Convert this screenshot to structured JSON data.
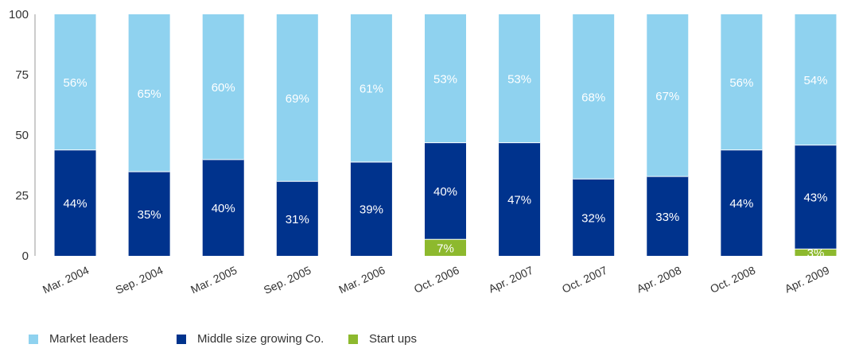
{
  "chart_data": {
    "type": "bar",
    "stacked": true,
    "categories": [
      "Mar. 2004",
      "Sep. 2004",
      "Mar. 2005",
      "Sep. 2005",
      "Mar. 2006",
      "Oct. 2006",
      "Apr. 2007",
      "Oct. 2007",
      "Apr. 2008",
      "Oct. 2008",
      "Apr. 2009"
    ],
    "series": [
      {
        "name": "Start ups",
        "color": "#8db92e",
        "values": [
          0,
          0,
          0,
          0,
          0,
          7,
          0,
          0,
          0,
          0,
          3
        ],
        "labels": [
          "",
          "",
          "",
          "",
          "",
          "7%",
          "",
          "",
          "",
          "",
          "3%"
        ]
      },
      {
        "name": "Middle size growing Co.",
        "color": "#00338d",
        "values": [
          44,
          35,
          40,
          31,
          39,
          40,
          47,
          32,
          33,
          44,
          43
        ],
        "labels": [
          "44%",
          "35%",
          "40%",
          "31%",
          "39%",
          "40%",
          "47%",
          "32%",
          "33%",
          "44%",
          "43%"
        ]
      },
      {
        "name": "Market leaders",
        "color": "#8fd2ef",
        "values": [
          56,
          65,
          60,
          69,
          61,
          53,
          53,
          68,
          67,
          56,
          54
        ],
        "labels": [
          "56%",
          "65%",
          "60%",
          "69%",
          "61%",
          "53%",
          "53%",
          "68%",
          "67%",
          "56%",
          "54%"
        ]
      }
    ],
    "ylim": [
      0,
      100
    ],
    "yticks": [
      "0",
      "25",
      "50",
      "75",
      "100"
    ],
    "legend_position": "bottom-left",
    "title": "",
    "xlabel": "",
    "ylabel": ""
  },
  "legend": {
    "items": [
      {
        "label": "Market leaders",
        "color": "#8fd2ef"
      },
      {
        "label": "Middle size growing Co.",
        "color": "#00338d"
      },
      {
        "label": "Start ups",
        "color": "#8db92e"
      }
    ]
  }
}
